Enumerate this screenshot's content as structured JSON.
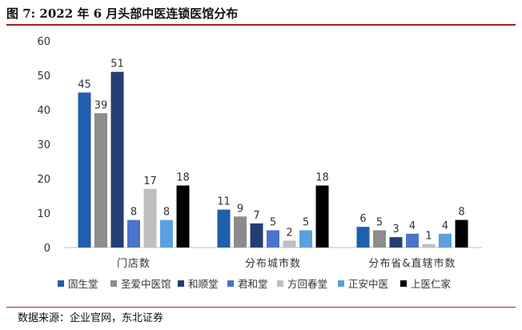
{
  "header": {
    "title": "图 7:  2022 年 6 月头部中医连锁医馆分布"
  },
  "footer": {
    "source": "数据来源：企业官网，东北证券"
  },
  "chart_data": {
    "type": "bar",
    "title": "",
    "xlabel": "",
    "ylabel": "",
    "ylim": [
      0,
      60
    ],
    "yticks": [
      0,
      10,
      20,
      30,
      40,
      50,
      60
    ],
    "grid": false,
    "legend_position": "bottom",
    "categories": [
      "门店数",
      "分布城市数",
      "分布省&直辖市数"
    ],
    "series": [
      {
        "name": "固生堂",
        "color": "#1f5fae",
        "values": [
          45,
          11,
          6
        ]
      },
      {
        "name": "圣爱中医馆",
        "color": "#8c8c8c",
        "values": [
          39,
          9,
          5
        ]
      },
      {
        "name": "和顺堂",
        "color": "#243e73",
        "values": [
          51,
          7,
          3
        ]
      },
      {
        "name": "君和堂",
        "color": "#4a74c9",
        "values": [
          8,
          5,
          4
        ]
      },
      {
        "name": "方回春堂",
        "color": "#bfbfbf",
        "values": [
          17,
          2,
          1
        ]
      },
      {
        "name": "正安中医",
        "color": "#5aa0de",
        "values": [
          8,
          5,
          4
        ]
      },
      {
        "name": "上医仁家",
        "color": "#000000",
        "values": [
          18,
          18,
          8
        ]
      }
    ]
  }
}
